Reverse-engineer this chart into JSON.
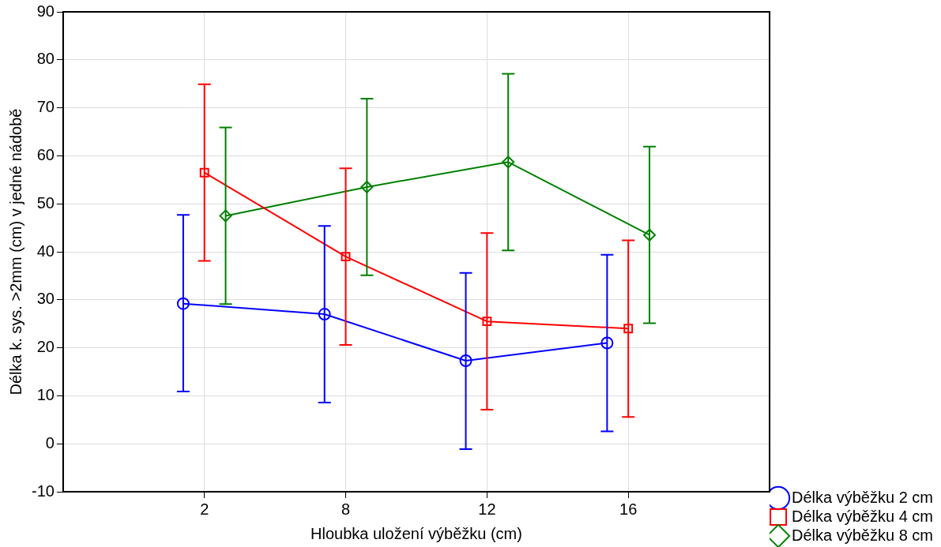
{
  "chart_data": {
    "type": "line",
    "xlabel": "Hloubka uložení výběžku (cm)",
    "ylabel": "Délka k. sys. >2mm (cm) v jedné nádobě",
    "categories": [
      "2",
      "8",
      "12",
      "16"
    ],
    "series": [
      {
        "name": "Délka výběžku 2 cm",
        "color": "#0000ff",
        "marker": "circle",
        "values": [
          29.2,
          27.0,
          17.3,
          21.0
        ],
        "errors": [
          [
            10.9,
            47.7
          ],
          [
            8.6,
            45.4
          ],
          [
            -1.1,
            35.6
          ],
          [
            2.6,
            39.4
          ]
        ]
      },
      {
        "name": "Délka výběžku 4 cm",
        "color": "#ff0000",
        "marker": "square",
        "values": [
          56.5,
          39.0,
          25.5,
          24.0
        ],
        "errors": [
          [
            38.1,
            74.9
          ],
          [
            20.6,
            57.4
          ],
          [
            7.1,
            43.9
          ],
          [
            5.6,
            42.4
          ]
        ]
      },
      {
        "name": "Délka výběžku 8 cm",
        "color": "#008000",
        "marker": "diamond",
        "values": [
          47.5,
          53.5,
          58.7,
          43.5
        ],
        "errors": [
          [
            29.1,
            65.9
          ],
          [
            35.1,
            71.9
          ],
          [
            40.3,
            77.1
          ],
          [
            25.1,
            61.9
          ]
        ]
      }
    ],
    "ylim": [
      -10,
      90
    ],
    "yticks": [
      -10,
      0,
      10,
      20,
      30,
      40,
      50,
      60,
      70,
      80,
      90
    ],
    "grid": true,
    "legend": "bottom right",
    "line_style": "solid"
  }
}
